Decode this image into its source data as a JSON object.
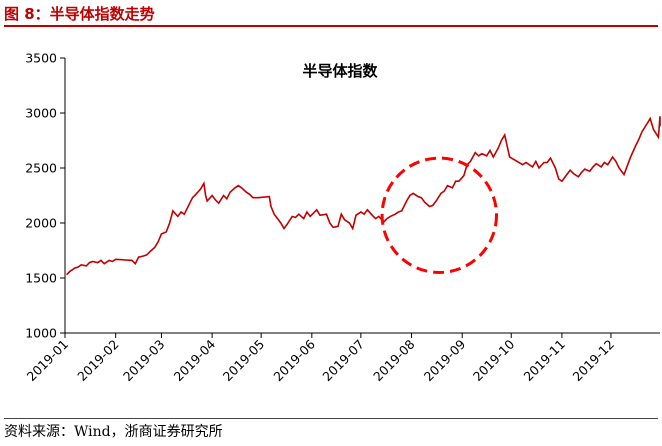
{
  "figure": {
    "title": "图 8：半导体指数走势",
    "source": "资料来源：Wind，浙商证券研究所"
  },
  "chart_data": {
    "type": "line",
    "title": "半导体指数",
    "xlabel": "",
    "ylabel": "",
    "ylim": [
      1000,
      3500
    ],
    "yticks": [
      1000,
      1500,
      2000,
      2500,
      3000,
      3500
    ],
    "xlim": [
      "2019-01-01",
      "2019-12-31"
    ],
    "x_tick_labels": [
      "2019-01",
      "2019-02",
      "2019-03",
      "2019-04",
      "2019-05",
      "2019-06",
      "2019-07",
      "2019-08",
      "2019-09",
      "2019-10",
      "2019-11",
      "2019-12"
    ],
    "grid": false,
    "legend": "none",
    "line_color": "#c00000",
    "annotation": {
      "shape": "dashed-circle",
      "color": "#ff0000",
      "center_x": "2019-08-18",
      "center_y": 2070,
      "radius_x_days": 35,
      "radius_y": 520
    },
    "series": [
      {
        "values": [
          [
            "2019-01-02",
            1530
          ],
          [
            "2019-01-04",
            1560
          ],
          [
            "2019-01-07",
            1590
          ],
          [
            "2019-01-09",
            1600
          ],
          [
            "2019-01-11",
            1620
          ],
          [
            "2019-01-14",
            1610
          ],
          [
            "2019-01-16",
            1640
          ],
          [
            "2019-01-18",
            1650
          ],
          [
            "2019-01-21",
            1640
          ],
          [
            "2019-01-23",
            1660
          ],
          [
            "2019-01-25",
            1630
          ],
          [
            "2019-01-28",
            1660
          ],
          [
            "2019-01-30",
            1650
          ],
          [
            "2019-02-01",
            1670
          ],
          [
            "2019-02-11",
            1660
          ],
          [
            "2019-02-13",
            1630
          ],
          [
            "2019-02-15",
            1690
          ],
          [
            "2019-02-18",
            1700
          ],
          [
            "2019-02-20",
            1710
          ],
          [
            "2019-02-22",
            1740
          ],
          [
            "2019-02-25",
            1780
          ],
          [
            "2019-02-27",
            1830
          ],
          [
            "2019-03-01",
            1900
          ],
          [
            "2019-03-04",
            1920
          ],
          [
            "2019-03-06",
            2000
          ],
          [
            "2019-03-08",
            2110
          ],
          [
            "2019-03-11",
            2060
          ],
          [
            "2019-03-13",
            2100
          ],
          [
            "2019-03-15",
            2080
          ],
          [
            "2019-03-18",
            2170
          ],
          [
            "2019-03-20",
            2230
          ],
          [
            "2019-03-22",
            2260
          ],
          [
            "2019-03-25",
            2310
          ],
          [
            "2019-03-27",
            2360
          ],
          [
            "2019-03-28",
            2250
          ],
          [
            "2019-03-29",
            2200
          ],
          [
            "2019-04-01",
            2250
          ],
          [
            "2019-04-03",
            2210
          ],
          [
            "2019-04-05",
            2180
          ],
          [
            "2019-04-08",
            2250
          ],
          [
            "2019-04-10",
            2220
          ],
          [
            "2019-04-12",
            2280
          ],
          [
            "2019-04-15",
            2320
          ],
          [
            "2019-04-17",
            2340
          ],
          [
            "2019-04-19",
            2320
          ],
          [
            "2019-04-22",
            2280
          ],
          [
            "2019-04-24",
            2260
          ],
          [
            "2019-04-26",
            2230
          ],
          [
            "2019-04-29",
            2230
          ],
          [
            "2019-05-06",
            2240
          ],
          [
            "2019-05-07",
            2150
          ],
          [
            "2019-05-09",
            2080
          ],
          [
            "2019-05-13",
            2000
          ],
          [
            "2019-05-15",
            1950
          ],
          [
            "2019-05-17",
            1990
          ],
          [
            "2019-05-20",
            2060
          ],
          [
            "2019-05-22",
            2050
          ],
          [
            "2019-05-24",
            2080
          ],
          [
            "2019-05-27",
            2040
          ],
          [
            "2019-05-29",
            2100
          ],
          [
            "2019-05-31",
            2060
          ],
          [
            "2019-06-04",
            2120
          ],
          [
            "2019-06-06",
            2070
          ],
          [
            "2019-06-10",
            2080
          ],
          [
            "2019-06-12",
            2000
          ],
          [
            "2019-06-14",
            1960
          ],
          [
            "2019-06-17",
            1970
          ],
          [
            "2019-06-19",
            2080
          ],
          [
            "2019-06-21",
            2030
          ],
          [
            "2019-06-24",
            2000
          ],
          [
            "2019-06-26",
            1950
          ],
          [
            "2019-06-28",
            2070
          ],
          [
            "2019-07-01",
            2100
          ],
          [
            "2019-07-03",
            2080
          ],
          [
            "2019-07-05",
            2120
          ],
          [
            "2019-07-08",
            2070
          ],
          [
            "2019-07-10",
            2040
          ],
          [
            "2019-07-12",
            2060
          ],
          [
            "2019-07-15",
            2010
          ],
          [
            "2019-07-17",
            2040
          ],
          [
            "2019-07-19",
            2060
          ],
          [
            "2019-07-22",
            2080
          ],
          [
            "2019-07-24",
            2100
          ],
          [
            "2019-07-26",
            2110
          ],
          [
            "2019-07-29",
            2200
          ],
          [
            "2019-07-31",
            2250
          ],
          [
            "2019-08-02",
            2270
          ],
          [
            "2019-08-05",
            2240
          ],
          [
            "2019-08-07",
            2230
          ],
          [
            "2019-08-09",
            2190
          ],
          [
            "2019-08-12",
            2150
          ],
          [
            "2019-08-14",
            2160
          ],
          [
            "2019-08-16",
            2200
          ],
          [
            "2019-08-19",
            2270
          ],
          [
            "2019-08-21",
            2290
          ],
          [
            "2019-08-23",
            2340
          ],
          [
            "2019-08-26",
            2320
          ],
          [
            "2019-08-28",
            2380
          ],
          [
            "2019-08-30",
            2380
          ],
          [
            "2019-09-02",
            2430
          ],
          [
            "2019-09-04",
            2530
          ],
          [
            "2019-09-06",
            2560
          ],
          [
            "2019-09-09",
            2640
          ],
          [
            "2019-09-11",
            2610
          ],
          [
            "2019-09-13",
            2630
          ],
          [
            "2019-09-16",
            2610
          ],
          [
            "2019-09-18",
            2660
          ],
          [
            "2019-09-20",
            2600
          ],
          [
            "2019-09-23",
            2680
          ],
          [
            "2019-09-25",
            2750
          ],
          [
            "2019-09-27",
            2800
          ],
          [
            "2019-09-30",
            2600
          ],
          [
            "2019-10-08",
            2530
          ],
          [
            "2019-10-10",
            2550
          ],
          [
            "2019-10-14",
            2510
          ],
          [
            "2019-10-16",
            2560
          ],
          [
            "2019-10-18",
            2500
          ],
          [
            "2019-10-21",
            2550
          ],
          [
            "2019-10-23",
            2550
          ],
          [
            "2019-10-25",
            2590
          ],
          [
            "2019-10-28",
            2500
          ],
          [
            "2019-10-30",
            2400
          ],
          [
            "2019-11-01",
            2380
          ],
          [
            "2019-11-04",
            2440
          ],
          [
            "2019-11-06",
            2480
          ],
          [
            "2019-11-08",
            2450
          ],
          [
            "2019-11-11",
            2420
          ],
          [
            "2019-11-13",
            2460
          ],
          [
            "2019-11-15",
            2490
          ],
          [
            "2019-11-18",
            2470
          ],
          [
            "2019-11-20",
            2510
          ],
          [
            "2019-11-22",
            2540
          ],
          [
            "2019-11-25",
            2510
          ],
          [
            "2019-11-27",
            2550
          ],
          [
            "2019-11-29",
            2530
          ],
          [
            "2019-12-02",
            2600
          ],
          [
            "2019-12-04",
            2560
          ],
          [
            "2019-12-06",
            2500
          ],
          [
            "2019-12-09",
            2440
          ],
          [
            "2019-12-11",
            2520
          ],
          [
            "2019-12-13",
            2600
          ],
          [
            "2019-12-16",
            2700
          ],
          [
            "2019-12-18",
            2760
          ],
          [
            "2019-12-20",
            2830
          ],
          [
            "2019-12-23",
            2900
          ],
          [
            "2019-12-25",
            2950
          ],
          [
            "2019-12-27",
            2850
          ],
          [
            "2019-12-30",
            2780
          ],
          [
            "2019-12-31",
            2970
          ],
          [
            "2019-12-31",
            2880
          ]
        ]
      }
    ]
  }
}
